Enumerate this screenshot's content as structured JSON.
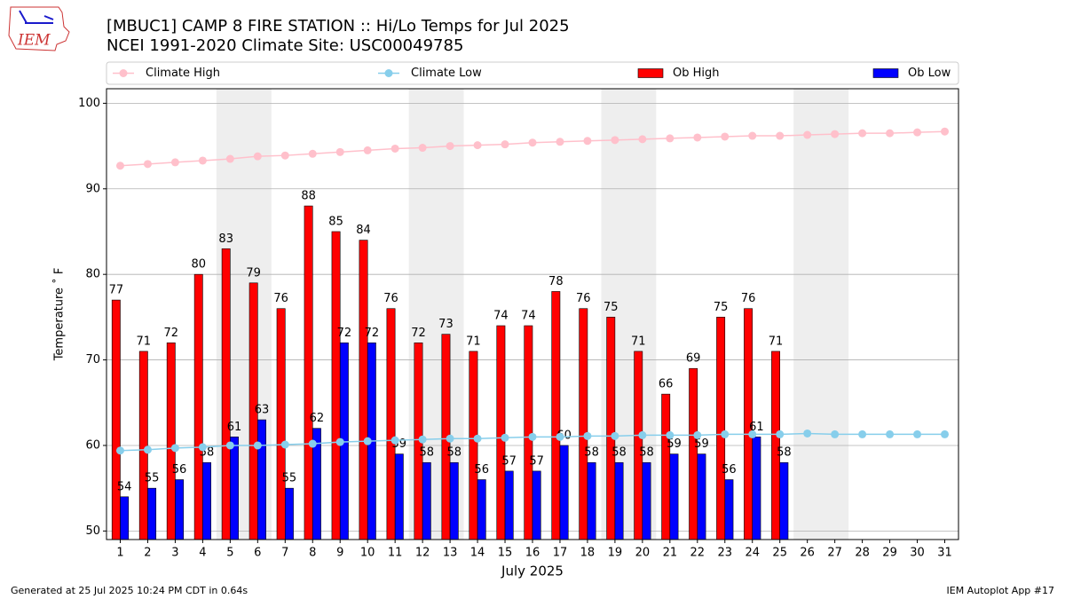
{
  "chart_data": {
    "type": "bar",
    "logo_text": "IEM",
    "title": "[MBUC1] CAMP 8 FIRE STATION :: Hi/Lo Temps for Jul 2025",
    "subtitle": "NCEI 1991-2020 Climate Site: USC00049785",
    "x_label": "July 2025",
    "y_label": "Temperature ˚ F",
    "footer_left": "Generated at 25 Jul 2025 10:24 PM CDT in 0.64s",
    "footer_right": "IEM Autoplot App #17",
    "x": [
      1,
      2,
      3,
      4,
      5,
      6,
      7,
      8,
      9,
      10,
      11,
      12,
      13,
      14,
      15,
      16,
      17,
      18,
      19,
      20,
      21,
      22,
      23,
      24,
      25,
      26,
      27,
      28,
      29,
      30,
      31
    ],
    "xlim": [
      0.5,
      31.5
    ],
    "xticks": [
      1,
      2,
      3,
      4,
      5,
      6,
      7,
      8,
      9,
      10,
      11,
      12,
      13,
      14,
      15,
      16,
      17,
      18,
      19,
      20,
      21,
      22,
      23,
      24,
      25,
      26,
      27,
      28,
      29,
      30,
      31
    ],
    "ylim": [
      49,
      101.7
    ],
    "yticks": [
      50,
      60,
      70,
      80,
      90,
      100
    ],
    "grid": true,
    "shaded_ranges": [
      [
        4.5,
        6.5
      ],
      [
        11.5,
        13.5
      ],
      [
        18.5,
        20.5
      ],
      [
        25.5,
        27.5
      ]
    ],
    "shade_color": "#eeeeee",
    "series": [
      {
        "name": "Climate High",
        "type": "line",
        "color": "#ffc0cb",
        "values": [
          92.7,
          92.9,
          93.1,
          93.3,
          93.5,
          93.8,
          93.9,
          94.1,
          94.3,
          94.5,
          94.7,
          94.8,
          95.0,
          95.1,
          95.2,
          95.4,
          95.5,
          95.6,
          95.7,
          95.8,
          95.9,
          96.0,
          96.1,
          96.2,
          96.2,
          96.3,
          96.4,
          96.5,
          96.5,
          96.6,
          96.7
        ]
      },
      {
        "name": "Climate Low",
        "type": "line",
        "color": "#87ceeb",
        "values": [
          59.4,
          59.5,
          59.7,
          59.8,
          60.0,
          60.0,
          60.1,
          60.2,
          60.4,
          60.5,
          60.6,
          60.7,
          60.8,
          60.8,
          60.9,
          61.0,
          61.0,
          61.1,
          61.1,
          61.2,
          61.2,
          61.2,
          61.3,
          61.3,
          61.3,
          61.4,
          61.3,
          61.3,
          61.3,
          61.3,
          61.3
        ]
      },
      {
        "name": "Ob High",
        "type": "bar",
        "color": "#ff0000",
        "values": [
          77,
          71,
          72,
          80,
          83,
          79,
          76,
          88,
          85,
          84,
          76,
          72,
          73,
          71,
          74,
          74,
          78,
          76,
          75,
          71,
          66,
          69,
          75,
          76,
          71,
          null,
          null,
          null,
          null,
          null,
          null
        ]
      },
      {
        "name": "Ob Low",
        "type": "bar",
        "color": "#0000ff",
        "values": [
          54,
          55,
          56,
          58,
          61,
          63,
          55,
          62,
          72,
          72,
          59,
          58,
          58,
          56,
          57,
          57,
          60,
          58,
          58,
          58,
          59,
          59,
          56,
          61,
          58,
          null,
          null,
          null,
          null,
          null,
          null
        ]
      }
    ]
  }
}
